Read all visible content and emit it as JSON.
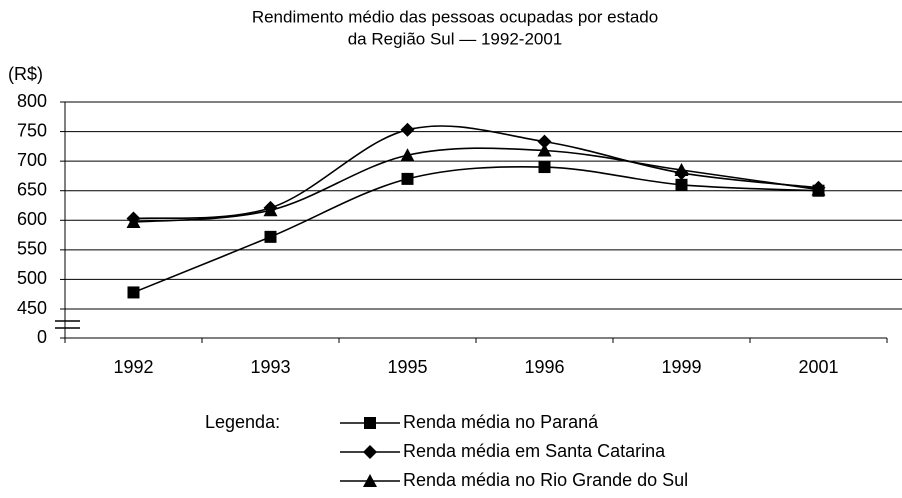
{
  "chart_data": {
    "type": "line",
    "title": "Rendimento médio das pessoas ocupadas por estado",
    "subtitle": "da Região Sul — 1992-2001",
    "y_label": "(R$)",
    "categories": [
      "1992",
      "1993",
      "1995",
      "1996",
      "1999",
      "2001"
    ],
    "series": [
      {
        "name": "Renda média no Paraná",
        "color": "#000000",
        "marker": "square",
        "values": [
          478,
          572,
          670,
          690,
          660,
          650
        ]
      },
      {
        "name": "Renda média em Santa Catarina",
        "color": "#000000",
        "marker": "diamond",
        "values": [
          603,
          621,
          753,
          733,
          680,
          655
        ]
      },
      {
        "name": "Renda média no Rio Grande do Sul",
        "color": "#000000",
        "marker": "triangle",
        "values": [
          597,
          617,
          710,
          718,
          685,
          652
        ]
      }
    ],
    "ylim": [
      0,
      800
    ],
    "y_break": [
      0,
      450
    ],
    "yticks": [
      0,
      450,
      500,
      550,
      600,
      650,
      700,
      750,
      800
    ],
    "grid": true,
    "smooth": true,
    "legend_title": "Legenda:",
    "legend_position": "bottom"
  }
}
